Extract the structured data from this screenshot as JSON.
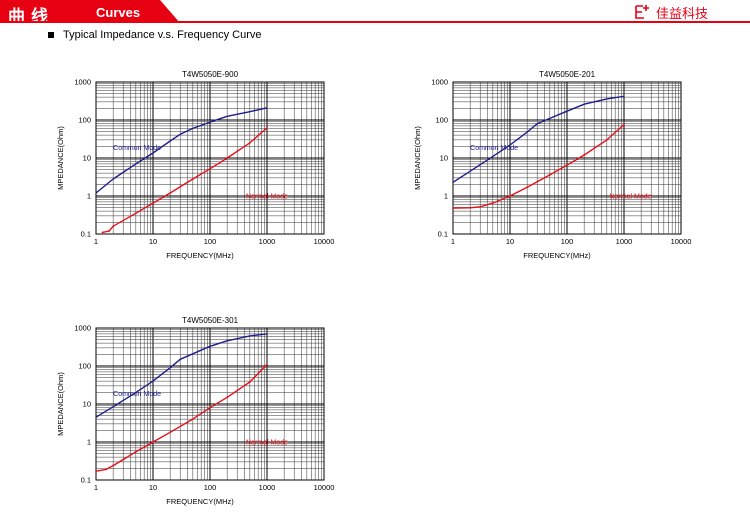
{
  "header": {
    "title": "曲线",
    "subtitle": "Curves",
    "brand": "佳益科技"
  },
  "section": {
    "title": "Typical Impedance v.s. Frequency Curve"
  },
  "colors": {
    "brand": "#e60012",
    "common": "#1d1d8c",
    "normal": "#e8101a"
  },
  "chart_data": [
    {
      "type": "line",
      "title": "T4W5050E-900",
      "xlabel": "FREQUENCY(MHz)",
      "ylabel": "MPEDANCE(Ohm)",
      "xscale": "log",
      "yscale": "log",
      "xlim": [
        1,
        10000
      ],
      "ylim": [
        0.1,
        1000
      ],
      "xticks": [
        "1",
        "10",
        "100",
        "1000",
        "10000"
      ],
      "yticks": [
        "0.1",
        "1",
        "10",
        "100",
        "1000"
      ],
      "grid": true,
      "series": [
        {
          "name": "Common Mode",
          "color": "#1d1d8c",
          "points": [
            [
              1,
              1.2
            ],
            [
              2,
              2.8
            ],
            [
              5,
              7
            ],
            [
              10,
              13.5
            ],
            [
              20,
              28
            ],
            [
              30,
              42
            ],
            [
              50,
              60
            ],
            [
              100,
              88
            ],
            [
              200,
              125
            ],
            [
              500,
              165
            ],
            [
              1000,
              210
            ]
          ]
        },
        {
          "name": "Normal Mode",
          "color": "#e8101a",
          "points": [
            [
              1.3,
              0.11
            ],
            [
              1.7,
              0.12
            ],
            [
              2,
              0.16
            ],
            [
              5,
              0.35
            ],
            [
              10,
              0.65
            ],
            [
              20,
              1.2
            ],
            [
              50,
              2.8
            ],
            [
              100,
              5.2
            ],
            [
              200,
              10
            ],
            [
              500,
              25
            ],
            [
              1000,
              62
            ]
          ]
        }
      ]
    },
    {
      "type": "line",
      "title": "T4W5050E-201",
      "xlabel": "FREQUENCY(MHz)",
      "ylabel": "MPEDANCE(Ohm)",
      "xscale": "log",
      "yscale": "log",
      "xlim": [
        1,
        10000
      ],
      "ylim": [
        0.1,
        1000
      ],
      "xticks": [
        "1",
        "10",
        "100",
        "1000",
        "10000"
      ],
      "yticks": [
        "0.1",
        "1",
        "10",
        "100",
        "1000"
      ],
      "grid": true,
      "series": [
        {
          "name": "Common Mode",
          "color": "#1d1d8c",
          "points": [
            [
              1,
              2.3
            ],
            [
              2,
              4.5
            ],
            [
              5,
              11
            ],
            [
              10,
              22
            ],
            [
              20,
              48
            ],
            [
              30,
              80
            ],
            [
              50,
              110
            ],
            [
              100,
              170
            ],
            [
              200,
              260
            ],
            [
              500,
              360
            ],
            [
              1000,
              420
            ]
          ]
        },
        {
          "name": "Normal Mode",
          "color": "#e8101a",
          "points": [
            [
              1,
              0.48
            ],
            [
              2,
              0.49
            ],
            [
              3,
              0.52
            ],
            [
              5,
              0.65
            ],
            [
              10,
              1.0
            ],
            [
              20,
              1.7
            ],
            [
              50,
              3.6
            ],
            [
              100,
              6.5
            ],
            [
              200,
              12
            ],
            [
              500,
              30
            ],
            [
              1000,
              75
            ]
          ]
        }
      ]
    },
    {
      "type": "line",
      "title": "T4W5050E-301",
      "xlabel": "FREQUENCY(MHz)",
      "ylabel": "MPEDANCE(Ohm)",
      "xscale": "log",
      "yscale": "log",
      "xlim": [
        1,
        10000
      ],
      "ylim": [
        0.1,
        1000
      ],
      "xticks": [
        "1",
        "10",
        "100",
        "1000",
        "10000"
      ],
      "yticks": [
        "0.1",
        "1",
        "10",
        "100",
        "1000"
      ],
      "grid": true,
      "series": [
        {
          "name": "Common Mode",
          "color": "#1d1d8c",
          "points": [
            [
              1,
              4.5
            ],
            [
              2,
              8.5
            ],
            [
              5,
              20
            ],
            [
              10,
              40
            ],
            [
              20,
              90
            ],
            [
              30,
              150
            ],
            [
              50,
              210
            ],
            [
              100,
              330
            ],
            [
              200,
              460
            ],
            [
              500,
              620
            ],
            [
              1000,
              700
            ]
          ]
        },
        {
          "name": "Normal Mode",
          "color": "#e8101a",
          "points": [
            [
              1,
              0.17
            ],
            [
              1.5,
              0.19
            ],
            [
              2,
              0.24
            ],
            [
              5,
              0.55
            ],
            [
              10,
              1.0
            ],
            [
              20,
              1.8
            ],
            [
              50,
              4
            ],
            [
              100,
              8
            ],
            [
              200,
              15
            ],
            [
              500,
              38
            ],
            [
              1000,
              110
            ]
          ]
        }
      ]
    }
  ]
}
